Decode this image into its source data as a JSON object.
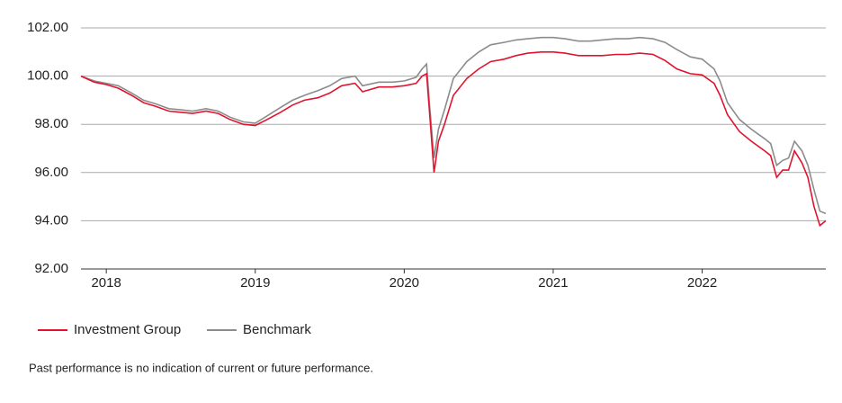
{
  "chart_data": {
    "type": "line",
    "x": [
      2017.83,
      2017.92,
      2018.0,
      2018.08,
      2018.17,
      2018.25,
      2018.33,
      2018.42,
      2018.5,
      2018.58,
      2018.67,
      2018.75,
      2018.83,
      2018.92,
      2019.0,
      2019.08,
      2019.17,
      2019.25,
      2019.33,
      2019.42,
      2019.5,
      2019.58,
      2019.67,
      2019.72,
      2019.83,
      2019.92,
      2020.0,
      2020.08,
      2020.12,
      2020.15,
      2020.17,
      2020.2,
      2020.23,
      2020.27,
      2020.33,
      2020.42,
      2020.5,
      2020.58,
      2020.67,
      2020.75,
      2020.83,
      2020.92,
      2021.0,
      2021.08,
      2021.17,
      2021.25,
      2021.33,
      2021.42,
      2021.5,
      2021.58,
      2021.67,
      2021.75,
      2021.83,
      2021.92,
      2022.0,
      2022.08,
      2022.12,
      2022.17,
      2022.25,
      2022.33,
      2022.42,
      2022.46,
      2022.5,
      2022.54,
      2022.58,
      2022.62,
      2022.67,
      2022.71,
      2022.75,
      2022.79,
      2022.83
    ],
    "series": [
      {
        "name": "Investment Group",
        "color": "#e0142e",
        "values": [
          100.0,
          99.75,
          99.65,
          99.5,
          99.2,
          98.9,
          98.75,
          98.55,
          98.5,
          98.45,
          98.55,
          98.45,
          98.2,
          98.0,
          97.95,
          98.2,
          98.5,
          98.8,
          99.0,
          99.1,
          99.3,
          99.6,
          99.7,
          99.35,
          99.55,
          99.55,
          99.6,
          99.7,
          100.0,
          100.1,
          98.5,
          96.0,
          97.3,
          98.0,
          99.2,
          99.9,
          100.3,
          100.6,
          100.7,
          100.85,
          100.95,
          101.0,
          101.0,
          100.95,
          100.85,
          100.85,
          100.85,
          100.9,
          100.9,
          100.95,
          100.9,
          100.65,
          100.3,
          100.1,
          100.05,
          99.7,
          99.2,
          98.4,
          97.7,
          97.3,
          96.9,
          96.7,
          95.8,
          96.1,
          96.1,
          96.9,
          96.4,
          95.8,
          94.6,
          93.8,
          94.0
        ]
      },
      {
        "name": "Benchmark",
        "color": "#8c8c8c",
        "values": [
          100.0,
          99.8,
          99.7,
          99.6,
          99.3,
          99.0,
          98.85,
          98.65,
          98.6,
          98.55,
          98.65,
          98.55,
          98.3,
          98.1,
          98.05,
          98.35,
          98.7,
          99.0,
          99.2,
          99.4,
          99.6,
          99.9,
          100.0,
          99.6,
          99.75,
          99.75,
          99.8,
          99.95,
          100.3,
          100.5,
          98.8,
          96.6,
          97.8,
          98.6,
          99.9,
          100.6,
          101.0,
          101.3,
          101.4,
          101.5,
          101.55,
          101.6,
          101.6,
          101.55,
          101.45,
          101.45,
          101.5,
          101.55,
          101.55,
          101.6,
          101.55,
          101.4,
          101.1,
          100.8,
          100.7,
          100.3,
          99.8,
          98.9,
          98.2,
          97.8,
          97.4,
          97.2,
          96.3,
          96.5,
          96.6,
          97.3,
          96.9,
          96.3,
          95.3,
          94.4,
          94.3
        ]
      }
    ],
    "xlim": [
      2017.83,
      2022.83
    ],
    "xticks": [
      2018,
      2019,
      2020,
      2021,
      2022
    ],
    "ylim": [
      92,
      102
    ],
    "yticks": [
      {
        "value": 92,
        "label": "92.00"
      },
      {
        "value": 94,
        "label": "94.00"
      },
      {
        "value": 96,
        "label": "96.00"
      },
      {
        "value": 98,
        "label": "98.00"
      },
      {
        "value": 100,
        "label": "100.00"
      },
      {
        "value": 102,
        "label": "102.00"
      }
    ],
    "grid": true,
    "note": "Past performance is no indication of current or future performance."
  }
}
